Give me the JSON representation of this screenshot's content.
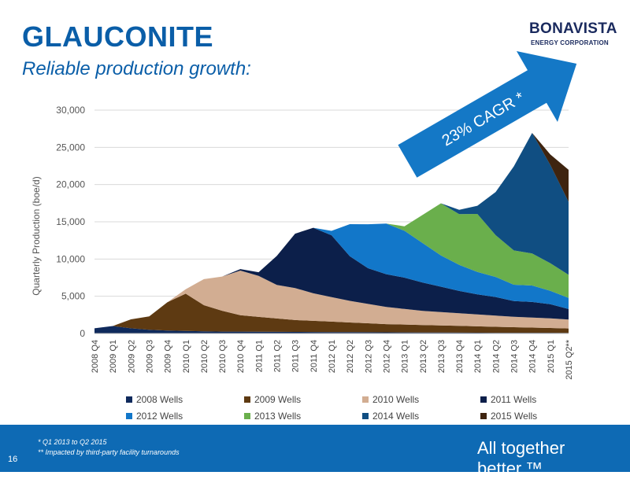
{
  "slide": {
    "title": "GLAUCONITE",
    "subtitle": "Reliable production growth:",
    "logo_main": "BONAVISTA",
    "logo_sub": "ENERGY CORPORATION",
    "page_number": "16",
    "tagline": "All together better.™",
    "footnote_1": "* Q1 2013 to Q2 2015",
    "footnote_2": "** Impacted by third-party facility turnarounds",
    "arrow_label": "23% CAGR *",
    "colors": {
      "brand_blue": "#0a5ea8",
      "footer_blue": "#0e6ab4",
      "arrow_blue": "#1478c6"
    }
  },
  "chart_data": {
    "type": "area",
    "stacked": true,
    "ylabel": "Quarterly Production (boe/d)",
    "xlabel": "",
    "ylim": [
      0,
      30000
    ],
    "yticks": [
      0,
      5000,
      10000,
      15000,
      20000,
      25000,
      30000
    ],
    "ytick_labels": [
      "0",
      "5,000",
      "10,000",
      "15,000",
      "20,000",
      "25,000",
      "30,000"
    ],
    "grid": true,
    "legend_position": "bottom",
    "categories": [
      "2008 Q4",
      "2009 Q1",
      "2009 Q2",
      "2009 Q3",
      "2009 Q4",
      "2010 Q1",
      "2010 Q2",
      "2010 Q3",
      "2010 Q4",
      "2011 Q1",
      "2011 Q2",
      "2011 Q3",
      "2011 Q4",
      "2012 Q1",
      "2012 Q2",
      "2012 Q3",
      "2012 Q4",
      "2013 Q1",
      "2013 Q2",
      "2013 Q3",
      "2013 Q4",
      "2014 Q1",
      "2014 Q2",
      "2014 Q3",
      "2014 Q4",
      "2015 Q1",
      "2015 Q2**"
    ],
    "series": [
      {
        "name": "2008 Wells",
        "color": "#0f2a5c",
        "values": [
          700,
          1000,
          700,
          500,
          400,
          350,
          300,
          250,
          250,
          230,
          220,
          210,
          200,
          190,
          180,
          170,
          160,
          150,
          140,
          130,
          120,
          110,
          100,
          100,
          90,
          90,
          80
        ]
      },
      {
        "name": "2009 Wells",
        "color": "#5e3a12",
        "values": [
          0,
          0,
          1200,
          1800,
          3800,
          5000,
          3500,
          2800,
          2200,
          2000,
          1800,
          1600,
          1500,
          1400,
          1300,
          1200,
          1100,
          1050,
          1000,
          950,
          900,
          850,
          800,
          750,
          700,
          650,
          600
        ]
      },
      {
        "name": "2010 Wells",
        "color": "#d2ad92",
        "values": [
          0,
          0,
          0,
          0,
          0,
          600,
          3500,
          4600,
          6000,
          5500,
          4500,
          4300,
          3700,
          3300,
          2900,
          2600,
          2300,
          2100,
          1900,
          1800,
          1700,
          1600,
          1500,
          1400,
          1350,
          1300,
          1200
        ]
      },
      {
        "name": "2011 Wells",
        "color": "#0c1f4a",
        "values": [
          0,
          0,
          0,
          0,
          0,
          0,
          0,
          0,
          200,
          500,
          3900,
          7300,
          8800,
          8300,
          6000,
          4800,
          4400,
          4200,
          3800,
          3400,
          3000,
          2700,
          2500,
          2100,
          2100,
          1900,
          1400
        ]
      },
      {
        "name": "2012 Wells",
        "color": "#1277c9",
        "values": [
          0,
          0,
          0,
          0,
          0,
          0,
          0,
          0,
          0,
          0,
          0,
          0,
          0,
          600,
          4300,
          5900,
          6800,
          6300,
          5300,
          4200,
          3500,
          3000,
          2700,
          2200,
          2200,
          1800,
          1500
        ]
      },
      {
        "name": "2013 Wells",
        "color": "#6aaf4c",
        "values": [
          0,
          0,
          0,
          0,
          0,
          0,
          0,
          0,
          0,
          0,
          0,
          0,
          0,
          0,
          0,
          0,
          0,
          600,
          3800,
          7000,
          6800,
          7800,
          5600,
          4600,
          4300,
          3700,
          3100
        ]
      },
      {
        "name": "2014 Wells",
        "color": "#104e82",
        "values": [
          0,
          0,
          0,
          0,
          0,
          0,
          0,
          0,
          0,
          0,
          0,
          0,
          0,
          0,
          0,
          0,
          0,
          0,
          0,
          0,
          600,
          1100,
          5800,
          11300,
          16200,
          13200,
          9800
        ]
      },
      {
        "name": "2015 Wells",
        "color": "#3e2410",
        "values": [
          0,
          0,
          0,
          0,
          0,
          0,
          0,
          0,
          0,
          0,
          0,
          0,
          0,
          0,
          0,
          0,
          0,
          0,
          0,
          0,
          0,
          0,
          0,
          0,
          0,
          1400,
          4300
        ]
      }
    ]
  }
}
